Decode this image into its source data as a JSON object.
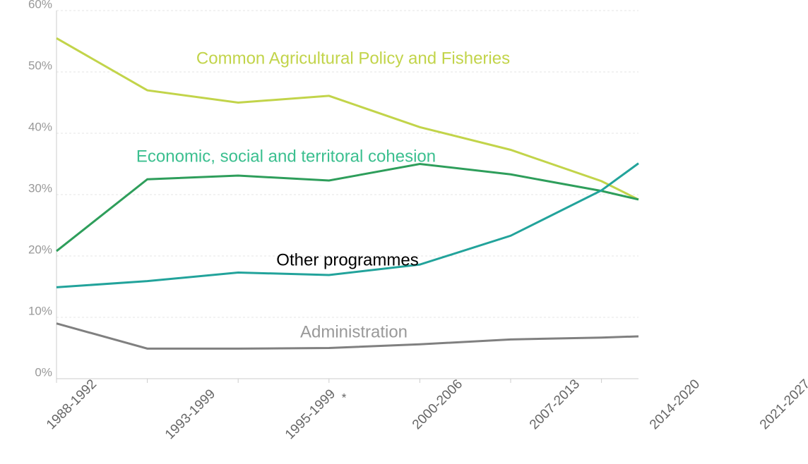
{
  "chart_data": {
    "type": "line",
    "categories": [
      "1988-1992",
      "1993-1999",
      "1995-1999",
      "*",
      "2000-2006",
      "2007-2013",
      "2014-2020",
      "2021-2027"
    ],
    "series": [
      {
        "name": "Common Agricultural Policy and Fisheries",
        "color": "#c2d44a",
        "label_color": "#c2d44a",
        "values": [
          55.5,
          47,
          45,
          46.1,
          41,
          37.3,
          32.2,
          29.2
        ]
      },
      {
        "name": "Economic, social and territoral cohesion",
        "color": "#2e9e5b",
        "label_color": "#3bbf8f",
        "values": [
          20.8,
          32.5,
          33.1,
          32.3,
          35,
          33.3,
          30.6,
          29.2
        ]
      },
      {
        "name": "Other programmes",
        "color": "#22a39b",
        "label_color": "#000000",
        "values": [
          14.9,
          15.9,
          17.3,
          16.9,
          18.6,
          23.3,
          30.7,
          35.1
        ]
      },
      {
        "name": "Administration",
        "color": "#808080",
        "label_color": "#999999",
        "values": [
          9,
          4.9,
          4.9,
          5,
          5.6,
          6.4,
          6.7,
          6.9
        ]
      }
    ],
    "ylim": [
      0,
      60
    ],
    "yticks": [
      {
        "value": 0,
        "label": "0%"
      },
      {
        "value": 10,
        "label": "10%"
      },
      {
        "value": 20,
        "label": "20%"
      },
      {
        "value": 30,
        "label": "30%"
      },
      {
        "value": 40,
        "label": "40%"
      },
      {
        "value": 50,
        "label": "50%"
      },
      {
        "value": 60,
        "label": "60%"
      }
    ],
    "grid": true
  }
}
